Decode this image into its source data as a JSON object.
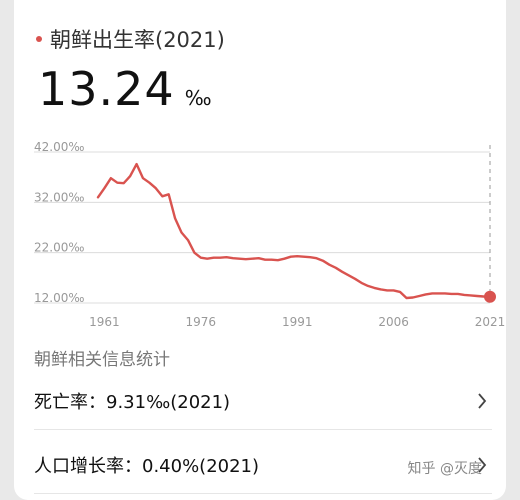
{
  "header": {
    "title": "朝鲜出生率(2021)",
    "value": "13.24",
    "unit": "‰"
  },
  "chart_data": {
    "type": "line",
    "xlabel": "",
    "ylabel": "",
    "y_ticks": [
      "42.00‰",
      "32.00‰",
      "22.00‰",
      "12.00‰"
    ],
    "y_tick_values": [
      42,
      32,
      22,
      12
    ],
    "x_ticks": [
      "1961",
      "1976",
      "1991",
      "2006",
      "2021"
    ],
    "x_tick_values": [
      1961,
      1976,
      1991,
      2006,
      2021
    ],
    "ylim": [
      12,
      42
    ],
    "xlim": [
      1960,
      2021
    ],
    "grid": true,
    "line_color": "#d9534f",
    "series": [
      {
        "x": [
          1960,
          1961,
          1962,
          1963,
          1964,
          1965,
          1966,
          1967,
          1968,
          1969,
          1970,
          1971,
          1972,
          1973,
          1974,
          1975,
          1976,
          1977,
          1978,
          1979,
          1980,
          1981,
          1982,
          1983,
          1984,
          1985,
          1986,
          1987,
          1988,
          1989,
          1990,
          1991,
          1992,
          1993,
          1994,
          1995,
          1996,
          1997,
          1998,
          1999,
          2000,
          2001,
          2002,
          2003,
          2004,
          2005,
          2006,
          2007,
          2008,
          2009,
          2010,
          2011,
          2012,
          2013,
          2014,
          2015,
          2016,
          2017,
          2018,
          2019,
          2020,
          2021
        ],
        "values": [
          33.0,
          34.8,
          36.8,
          35.9,
          35.8,
          37.2,
          39.6,
          36.8,
          35.9,
          34.8,
          33.2,
          33.6,
          28.8,
          26.0,
          24.5,
          22.0,
          21.0,
          20.8,
          21.0,
          21.0,
          21.1,
          20.9,
          20.8,
          20.7,
          20.8,
          20.9,
          20.6,
          20.6,
          20.5,
          20.8,
          21.2,
          21.3,
          21.2,
          21.1,
          20.9,
          20.4,
          19.6,
          19.0,
          18.2,
          17.5,
          16.8,
          16.0,
          15.4,
          15.0,
          14.7,
          14.5,
          14.5,
          14.2,
          13.0,
          13.1,
          13.4,
          13.7,
          13.9,
          13.9,
          13.9,
          13.8,
          13.8,
          13.6,
          13.5,
          13.4,
          13.3,
          13.24
        ]
      }
    ],
    "highlight": {
      "x": 2021,
      "value": 13.24
    }
  },
  "related": {
    "section_title": "朝鲜相关信息统计",
    "items": [
      {
        "label": "死亡率：9.31‰(2021)"
      },
      {
        "label": "人口增长率：0.40%(2021)"
      }
    ]
  },
  "watermark": "知乎 @灭度",
  "icons": {
    "chevron": "chevron-right-icon"
  }
}
